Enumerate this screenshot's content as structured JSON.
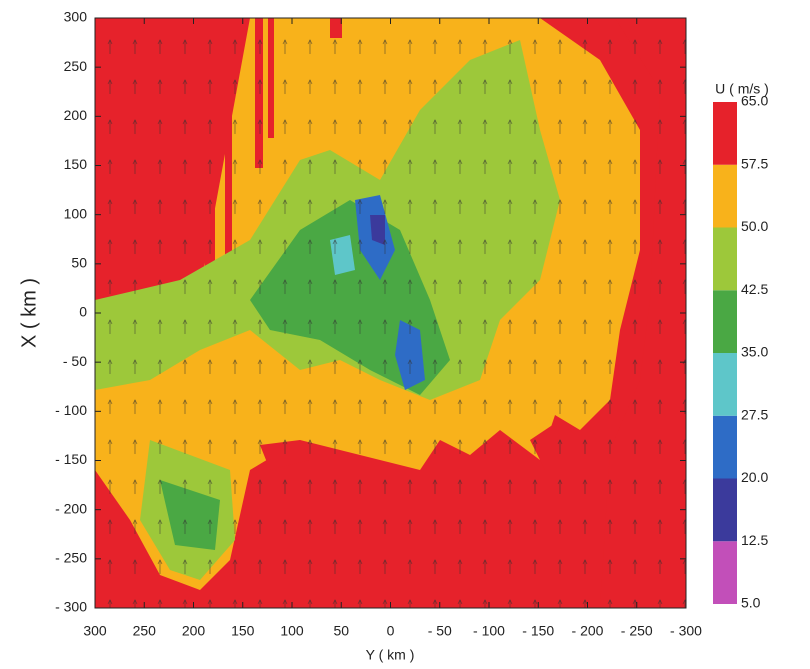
{
  "chart_data": {
    "type": "heatmap",
    "xlabel": "Y ( km )",
    "ylabel": "X ( km )",
    "xlim": [
      300,
      -300
    ],
    "ylim": [
      -300,
      300
    ],
    "xticks": [
      300,
      250,
      200,
      150,
      100,
      50,
      0,
      {
        "value": -50,
        "label": "- 50"
      },
      {
        "value": -100,
        "label": "- 100"
      },
      {
        "value": -150,
        "label": "- 150"
      },
      {
        "value": -200,
        "label": "- 200"
      },
      {
        "value": -250,
        "label": "- 250"
      },
      {
        "value": -300,
        "label": "- 300"
      }
    ],
    "yticks": [
      300,
      250,
      200,
      150,
      100,
      50,
      0,
      {
        "value": -50,
        "label": "- 50"
      },
      {
        "value": -100,
        "label": "- 100"
      },
      {
        "value": -150,
        "label": "- 150"
      },
      {
        "value": -200,
        "label": "- 200"
      },
      {
        "value": -250,
        "label": "- 250"
      },
      {
        "value": -300,
        "label": "- 300"
      }
    ],
    "colorbar": {
      "label": "U ( m/s )",
      "ticks": [
        {
          "value": 5,
          "label": "5.0"
        },
        {
          "value": 12.5,
          "label": "12.5"
        },
        {
          "value": 20,
          "label": "20.0"
        },
        {
          "value": 27.5,
          "label": "27.5"
        },
        {
          "value": 35,
          "label": "35.0"
        },
        {
          "value": 42.5,
          "label": "42.5"
        },
        {
          "value": 50,
          "label": "50.0"
        },
        {
          "value": 57.5,
          "label": "57.5"
        },
        {
          "value": 65,
          "label": "65.0"
        }
      ],
      "colors": [
        "#c24fb9",
        "#3b3a9c",
        "#2e6cc6",
        "#5ec6c9",
        "#4aa844",
        "#9dc83a",
        "#f8b21b",
        "#e6222b"
      ]
    }
  }
}
